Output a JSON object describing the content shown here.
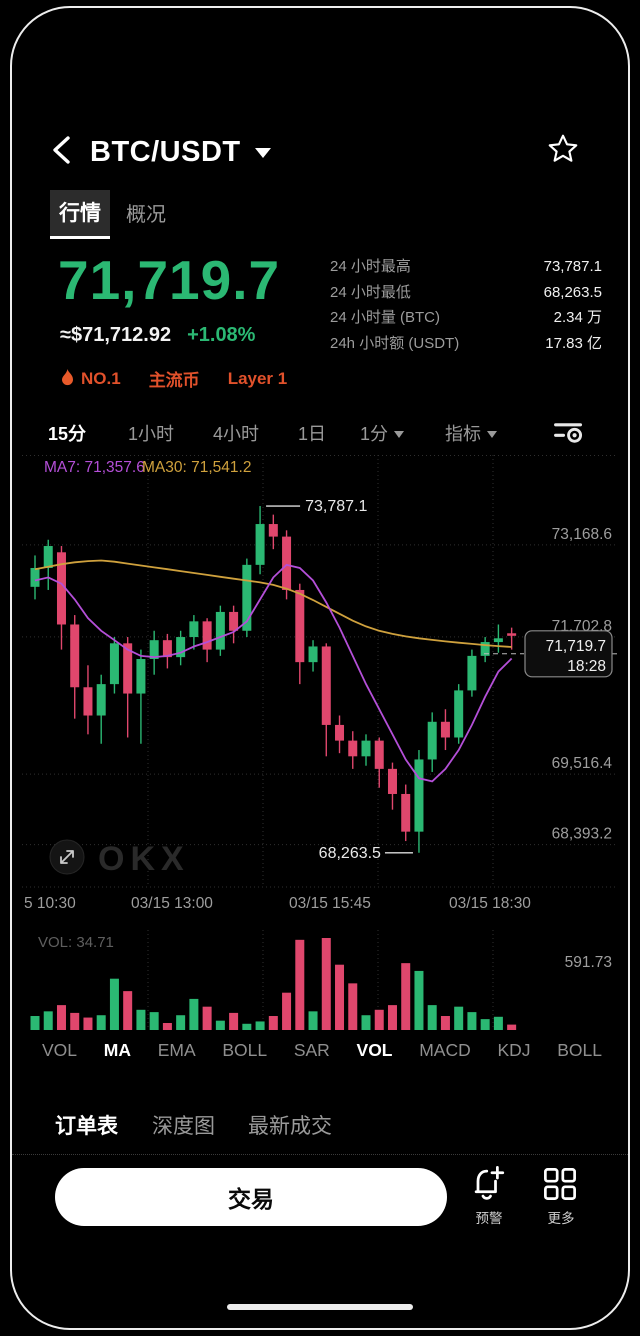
{
  "header": {
    "title": "BTC/USDT"
  },
  "tabs": {
    "market": "行情",
    "overview": "概况"
  },
  "price": {
    "last": "71,719.7",
    "usd": "≈$71,712.92",
    "change": "+1.08%"
  },
  "badges": {
    "rank": "NO.1",
    "tag1": "主流币",
    "tag2": "Layer 1"
  },
  "stats": [
    {
      "label": "24 小时最高",
      "value": "73,787.1"
    },
    {
      "label": "24 小时最低",
      "value": "68,263.5"
    },
    {
      "label": "24 小时量 (BTC)",
      "value": "2.34 万"
    },
    {
      "label": "24h 小时额 (USDT)",
      "value": "17.83 亿"
    }
  ],
  "timeframes": [
    {
      "label": "15分",
      "active": true
    },
    {
      "label": "1小时",
      "active": false
    },
    {
      "label": "4小时",
      "active": false
    },
    {
      "label": "1日",
      "active": false
    },
    {
      "label": "1分",
      "active": false,
      "caret": true
    },
    {
      "label": "指标",
      "active": false,
      "caret": true
    }
  ],
  "indicators": [
    {
      "label": "VOL",
      "active": false
    },
    {
      "label": "MA",
      "active": true
    },
    {
      "label": "EMA",
      "active": false
    },
    {
      "label": "BOLL",
      "active": false
    },
    {
      "label": "SAR",
      "active": false
    },
    {
      "label": "VOL",
      "active": true
    },
    {
      "label": "MACD",
      "active": false
    },
    {
      "label": "KDJ",
      "active": false
    },
    {
      "label": "BOLL",
      "active": false
    }
  ],
  "bottom_tabs": [
    {
      "label": "订单表",
      "active": true
    },
    {
      "label": "深度图",
      "active": false
    },
    {
      "label": "最新成交",
      "active": false
    }
  ],
  "footer": {
    "trade": "交易",
    "alert": "预警",
    "more": "更多"
  },
  "chart_data": {
    "type": "candlestick",
    "interval": "15m",
    "ma7_label": "MA7: 71,357.6",
    "ma30_label": "MA30: 71,541.2",
    "watermark": "OKX",
    "y_scale": {
      "max": 74600,
      "min": 67750
    },
    "y_axis": [
      {
        "label": "73,168.6",
        "value": 73168.6
      },
      {
        "label": "71,702.8",
        "value": 71702.8
      },
      {
        "label": "69,516.4",
        "value": 69516.4
      },
      {
        "label": "68,393.2",
        "value": 68393.2
      }
    ],
    "x_axis": [
      "5 10:30",
      "03/15 13:00",
      "03/15 15:45",
      "03/15 18:30"
    ],
    "candles": [
      [
        72500,
        73000,
        72300,
        72800
      ],
      [
        72800,
        73250,
        72450,
        73150
      ],
      [
        73050,
        73150,
        71500,
        71900
      ],
      [
        71900,
        72050,
        70400,
        70900
      ],
      [
        70900,
        71250,
        70150,
        70450
      ],
      [
        70450,
        71100,
        70000,
        70950
      ],
      [
        70950,
        71700,
        70800,
        71600
      ],
      [
        71600,
        71700,
        70100,
        70800
      ],
      [
        70800,
        71500,
        70000,
        71350
      ],
      [
        71350,
        71800,
        71100,
        71650
      ],
      [
        71650,
        71750,
        71200,
        71380
      ],
      [
        71380,
        71800,
        71250,
        71700
      ],
      [
        71700,
        72050,
        71500,
        71950
      ],
      [
        71950,
        72000,
        71300,
        71500
      ],
      [
        71500,
        72200,
        71400,
        72100
      ],
      [
        72100,
        72200,
        71600,
        71800
      ],
      [
        71800,
        72950,
        71700,
        72850
      ],
      [
        72850,
        73787.1,
        72700,
        73500
      ],
      [
        73500,
        73650,
        73100,
        73300
      ],
      [
        73300,
        73400,
        72300,
        72450
      ],
      [
        72450,
        72550,
        70950,
        71300
      ],
      [
        71300,
        71650,
        71150,
        71550
      ],
      [
        71550,
        71600,
        69800,
        70300
      ],
      [
        70300,
        70450,
        69850,
        70050
      ],
      [
        70050,
        70200,
        69600,
        69800
      ],
      [
        69800,
        70150,
        69650,
        70050
      ],
      [
        70050,
        70100,
        69300,
        69600
      ],
      [
        69600,
        69700,
        68950,
        69200
      ],
      [
        69200,
        69350,
        68450,
        68600
      ],
      [
        68600,
        69900,
        68263.5,
        69750
      ],
      [
        69750,
        70500,
        69550,
        70350
      ],
      [
        70350,
        70550,
        69900,
        70100
      ],
      [
        70100,
        70950,
        70000,
        70850
      ],
      [
        70850,
        71500,
        70750,
        71400
      ],
      [
        71400,
        71700,
        71300,
        71620
      ],
      [
        71620,
        71900,
        71450,
        71680
      ],
      [
        71760,
        71850,
        71500,
        71719.7
      ]
    ],
    "ma7": [
      72600,
      72650,
      72550,
      72300,
      72000,
      71800,
      71650,
      71500,
      71400,
      71380,
      71400,
      71450,
      71550,
      71620,
      71700,
      71780,
      71950,
      72300,
      72650,
      72850,
      72800,
      72600,
      72250,
      71850,
      71400,
      70950,
      70550,
      70150,
      69750,
      69450,
      69400,
      69600,
      69900,
      70300,
      70750,
      71150,
      71357.6
    ],
    "ma30": [
      72780,
      72820,
      72860,
      72890,
      72910,
      72920,
      72900,
      72870,
      72840,
      72810,
      72780,
      72750,
      72720,
      72690,
      72660,
      72630,
      72600,
      72570,
      72530,
      72470,
      72390,
      72290,
      72180,
      72070,
      71960,
      71870,
      71800,
      71750,
      71710,
      71680,
      71655,
      71630,
      71610,
      71590,
      71572,
      71556,
      71541.2
    ],
    "volumes": [
      90,
      120,
      160,
      110,
      80,
      95,
      330,
      250,
      130,
      115,
      45,
      95,
      200,
      150,
      60,
      110,
      40,
      55,
      90,
      240,
      580,
      120,
      591.73,
      420,
      300,
      95,
      130,
      160,
      430,
      380,
      160,
      90,
      150,
      115,
      70,
      85,
      34.71
    ],
    "vol_label": "VOL: 34.71",
    "vol_scale_max": 591.73,
    "vol_scale_max_label": "591.73",
    "annotations": {
      "high": {
        "label": "73,787.1",
        "index": 17
      },
      "low": {
        "label": "68,263.5",
        "index": 29
      }
    },
    "last": {
      "label": "71,719.7",
      "time": "18:28",
      "value": 71719.7
    },
    "colors": {
      "up": "#2bb873",
      "down": "#e0476d",
      "ma7": "#b44fd8",
      "ma30": "#cfa13d",
      "grid": "#2f2f2f",
      "axis_text": "#9e9e9e"
    }
  }
}
